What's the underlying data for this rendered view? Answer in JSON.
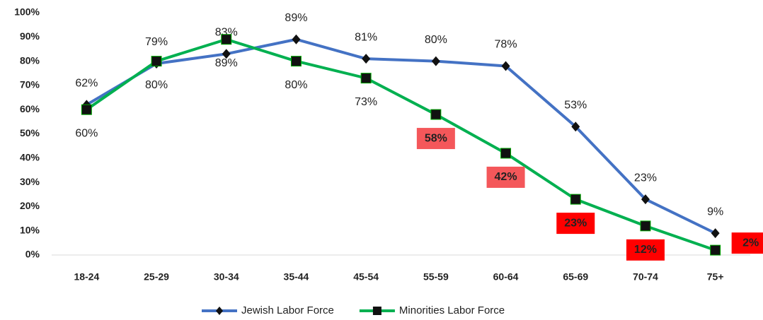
{
  "chart_data": {
    "type": "line",
    "categories": [
      "18-24",
      "25-29",
      "30-34",
      "35-44",
      "45-54",
      "55-59",
      "60-64",
      "65-69",
      "70-74",
      "75+"
    ],
    "series": [
      {
        "name": "Jewish Labor Force",
        "color": "#4472c4",
        "marker": "diamond",
        "values": [
          62,
          79,
          83,
          89,
          81,
          80,
          78,
          53,
          23,
          9
        ],
        "value_labels": [
          "62%",
          "79%",
          "83%",
          "89%",
          "81%",
          "80%",
          "78%",
          "53%",
          "23%",
          "9%"
        ]
      },
      {
        "name": "Minorities Labor Force",
        "color": "#00b050",
        "marker": "square",
        "values": [
          60,
          80,
          89,
          80,
          73,
          58,
          42,
          23,
          12,
          2
        ],
        "value_labels": [
          "60%",
          "80%",
          "89%",
          "80%",
          "73%",
          "58%",
          "42%",
          "23%",
          "12%",
          "2%"
        ],
        "label_highlight": [
          null,
          null,
          null,
          null,
          null,
          "#f4575a",
          "#f4575a",
          "#ff0000",
          "#ff0000",
          "#ff0000"
        ]
      }
    ],
    "ylim": [
      0,
      100
    ],
    "yticks": [
      {
        "value": 0,
        "label": "0%"
      },
      {
        "value": 10,
        "label": "10%"
      },
      {
        "value": 20,
        "label": "20%"
      },
      {
        "value": 30,
        "label": "30%"
      },
      {
        "value": 40,
        "label": "40%"
      },
      {
        "value": 50,
        "label": "50%"
      },
      {
        "value": 60,
        "label": "60%"
      },
      {
        "value": 70,
        "label": "70%"
      },
      {
        "value": 80,
        "label": "80%"
      },
      {
        "value": 90,
        "label": "90%"
      },
      {
        "value": 100,
        "label": "100%"
      }
    ],
    "grid": false,
    "legend": "bottom"
  }
}
